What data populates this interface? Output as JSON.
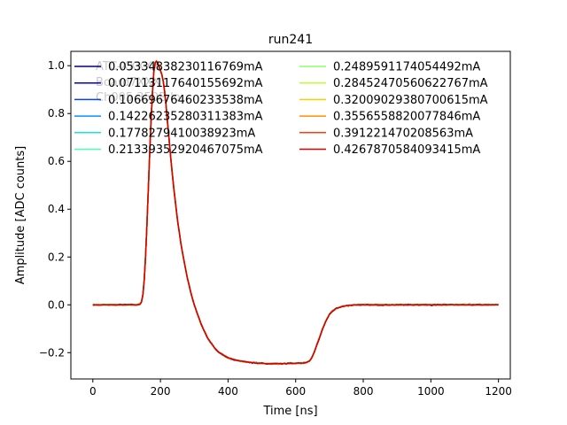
{
  "chart_data": {
    "type": "line",
    "title": "run241",
    "xlabel": "Time [ns]",
    "ylabel": "Amplitude [ADC counts]",
    "xlim": [
      -65,
      1235
    ],
    "ylim": [
      -0.31,
      1.06
    ],
    "xticks": [
      0,
      200,
      400,
      600,
      800,
      1000,
      1200
    ],
    "yticks": [
      -0.2,
      0.0,
      0.2,
      0.4,
      0.6,
      0.8,
      1.0
    ],
    "xtick_labels": [
      "0",
      "200",
      "400",
      "600",
      "800",
      "1000",
      "1200"
    ],
    "ytick_labels": [
      "−0.2",
      "0.0",
      "0.2",
      "0.4",
      "0.6",
      "0.8",
      "1.0"
    ],
    "grid": false,
    "legend_position": "top",
    "annotation_lines": [
      "ATC-XXXXX",
      "Board7XXX",
      "Ch005 350B lo"
    ],
    "waveform": {
      "x": [
        0,
        20,
        40,
        60,
        80,
        100,
        120,
        130,
        140,
        145,
        150,
        155,
        160,
        165,
        170,
        175,
        180,
        185,
        190,
        195,
        200,
        205,
        210,
        215,
        220,
        225,
        230,
        240,
        250,
        260,
        270,
        280,
        290,
        300,
        310,
        320,
        330,
        340,
        350,
        360,
        370,
        380,
        390,
        400,
        420,
        440,
        460,
        480,
        500,
        520,
        540,
        560,
        580,
        600,
        620,
        630,
        640,
        645,
        650,
        655,
        660,
        670,
        680,
        690,
        700,
        710,
        720,
        740,
        760,
        780,
        800,
        820,
        840,
        860,
        880,
        900,
        920,
        940,
        960,
        980,
        1000,
        1050,
        1100,
        1150,
        1200
      ],
      "y": [
        0.0,
        0.0,
        0.0,
        0.0,
        0.0,
        0.0,
        0.0,
        0.0,
        0.003,
        0.015,
        0.06,
        0.17,
        0.33,
        0.52,
        0.7,
        0.86,
        0.97,
        1.02,
        1.02,
        1.0,
        0.98,
        0.96,
        0.92,
        0.86,
        0.78,
        0.7,
        0.62,
        0.48,
        0.36,
        0.26,
        0.18,
        0.11,
        0.05,
        0.0,
        -0.04,
        -0.08,
        -0.11,
        -0.14,
        -0.16,
        -0.18,
        -0.195,
        -0.205,
        -0.215,
        -0.222,
        -0.23,
        -0.236,
        -0.24,
        -0.243,
        -0.245,
        -0.246,
        -0.246,
        -0.246,
        -0.245,
        -0.245,
        -0.244,
        -0.242,
        -0.236,
        -0.228,
        -0.215,
        -0.198,
        -0.178,
        -0.14,
        -0.1,
        -0.065,
        -0.04,
        -0.025,
        -0.015,
        -0.006,
        -0.002,
        0.0,
        0.0,
        0.0,
        0.0,
        0.0,
        0.0,
        0.0,
        0.0,
        0.0,
        0.0,
        0.0,
        0.0,
        0.0,
        0.0,
        0.0,
        0.0
      ]
    },
    "series": [
      {
        "name": "0.05334838230116769mA",
        "color": "#00007f"
      },
      {
        "name": "0.07113117640155692mA",
        "color": "#0000d4"
      },
      {
        "name": "0.10669676460233538mA",
        "color": "#0044ff"
      },
      {
        "name": "0.14226235280311383mA",
        "color": "#0094ff"
      },
      {
        "name": "0.1778279410038923mA",
        "color": "#1ce3e3"
      },
      {
        "name": "0.21339352920467075mA",
        "color": "#4dffb0"
      },
      {
        "name": "0.2489591174054492mA",
        "color": "#90ff66"
      },
      {
        "name": "0.28452470560622767mA",
        "color": "#c1ff36"
      },
      {
        "name": "0.32009029380700615mA",
        "color": "#ffcc00"
      },
      {
        "name": "0.3556558820077846mA",
        "color": "#ff9000"
      },
      {
        "name": "0.391221470208563mA",
        "color": "#ff3b10"
      },
      {
        "name": "0.4267870584093415mA",
        "color": "#d40000"
      }
    ]
  }
}
